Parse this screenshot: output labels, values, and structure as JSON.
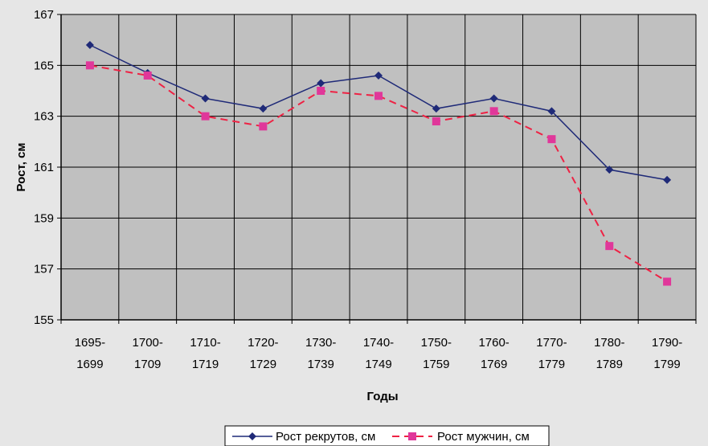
{
  "chart_data": {
    "type": "line",
    "title": "",
    "xlabel": "Годы",
    "ylabel": "Рост, см",
    "ylim": [
      155,
      167
    ],
    "yticks": [
      155,
      157,
      159,
      161,
      163,
      165,
      167
    ],
    "categories": [
      "1695-1699",
      "1700-1709",
      "1710-1719",
      "1720-1729",
      "1730-1739",
      "1740-1749",
      "1750-1759",
      "1760-1769",
      "1770-1779",
      "1780-1789",
      "1790-1799"
    ],
    "category_lines": [
      [
        "1695-",
        "1699"
      ],
      [
        "1700-",
        "1709"
      ],
      [
        "1710-",
        "1719"
      ],
      [
        "1720-",
        "1729"
      ],
      [
        "1730-",
        "1739"
      ],
      [
        "1740-",
        "1749"
      ],
      [
        "1750-",
        "1759"
      ],
      [
        "1760-",
        "1769"
      ],
      [
        "1770-",
        "1779"
      ],
      [
        "1780-",
        "1789"
      ],
      [
        "1790-",
        "1799"
      ]
    ],
    "series": [
      {
        "name": "Рост рекрутов, см",
        "values": [
          165.8,
          164.7,
          163.7,
          163.3,
          164.3,
          164.6,
          163.3,
          163.7,
          163.2,
          160.9,
          160.5
        ],
        "color": "#1f2a78",
        "marker": "diamond",
        "line_style": "solid"
      },
      {
        "name": "Рост мужчин, см",
        "values": [
          165.0,
          164.6,
          163.0,
          162.6,
          164.0,
          163.8,
          162.8,
          163.2,
          162.1,
          157.9,
          156.5
        ],
        "color": "#ee2244",
        "marker_color": "#e0379a",
        "marker": "square",
        "line_style": "dashed"
      }
    ],
    "grid": true,
    "plot_background": "#c0c0c0",
    "legend_position": "bottom"
  }
}
